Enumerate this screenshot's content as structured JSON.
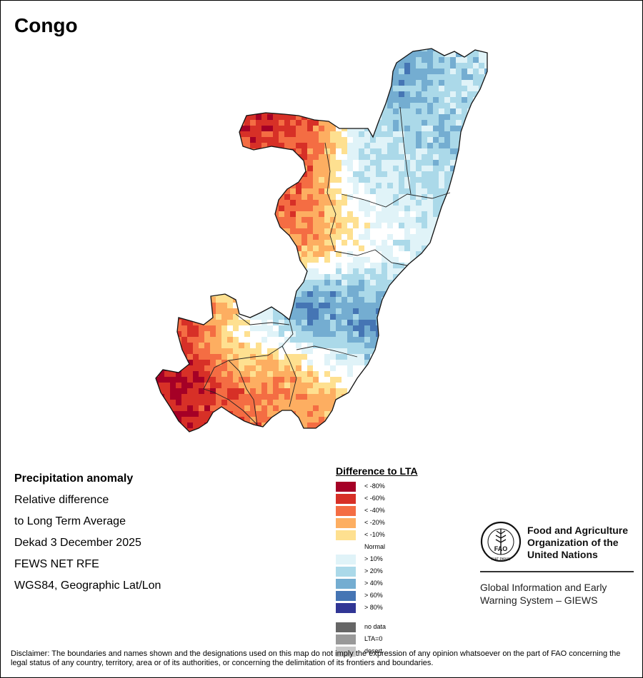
{
  "title": "Congo",
  "info": {
    "heading": "Precipitation anomaly",
    "line1": "Relative difference",
    "line2": "to Long Term Average",
    "period": "Dekad 3 December 2025",
    "source": "FEWS NET RFE",
    "projection": "WGS84, Geographic Lat/Lon"
  },
  "legend": {
    "title": "Difference to LTA",
    "classes": [
      {
        "label": "< -80%",
        "color": "#a50026"
      },
      {
        "label": "< -60%",
        "color": "#d73027"
      },
      {
        "label": "< -40%",
        "color": "#f46d43"
      },
      {
        "label": "< -20%",
        "color": "#fdae61"
      },
      {
        "label": "< -10%",
        "color": "#fee090"
      },
      {
        "label": "Normal",
        "color": "#ffffff"
      },
      {
        "label": "> 10%",
        "color": "#e0f3f8"
      },
      {
        "label": "> 20%",
        "color": "#abd9e9"
      },
      {
        "label": "> 40%",
        "color": "#74add1"
      },
      {
        "label": "> 60%",
        "color": "#4575b4"
      },
      {
        "label": "> 80%",
        "color": "#313695"
      }
    ],
    "special": [
      {
        "label": "no data",
        "color": "#666666"
      },
      {
        "label": "LTA=0",
        "color": "#999999"
      },
      {
        "label": "desert",
        "color": "#c8c8c8"
      }
    ]
  },
  "fao": {
    "org_line1": "Food and Agriculture",
    "org_line2": "Organization of the",
    "org_line3": "United Nations",
    "giews_line1": "Global Information and Early",
    "giews_line2": "Warning System – GIEWS",
    "logo_letters": "FAO",
    "logo_motto": "FIAT PANIS"
  },
  "disclaimer": "Disclaimer: The boundaries and names shown and the designations used on this map do not imply the expression of any opinion whatsoever on the part of FAO concerning the legal status of any country, territory, area or of its authorities, or concerning the delimitation of its frontiers and boundaries."
}
